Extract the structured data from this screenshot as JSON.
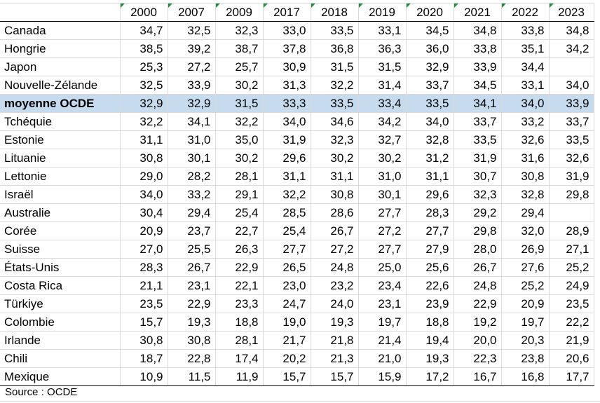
{
  "table": {
    "years": [
      "2000",
      "2007",
      "2009",
      "2017",
      "2018",
      "2019",
      "2020",
      "2021",
      "2022",
      "2023"
    ],
    "rows": [
      {
        "name": "Canada",
        "values": [
          "34,7",
          "32,5",
          "32,3",
          "33,0",
          "33,5",
          "33,1",
          "34,5",
          "34,8",
          "33,8",
          "34,8"
        ]
      },
      {
        "name": "Hongrie",
        "values": [
          "38,5",
          "39,2",
          "38,7",
          "37,8",
          "36,8",
          "36,3",
          "36,0",
          "33,8",
          "35,1",
          "34,2"
        ]
      },
      {
        "name": "Japon",
        "values": [
          "25,3",
          "27,2",
          "25,7",
          "30,9",
          "31,5",
          "31,5",
          "32,9",
          "33,9",
          "34,4",
          ""
        ]
      },
      {
        "name": "Nouvelle-Zélande",
        "values": [
          "32,5",
          "33,9",
          "30,2",
          "31,3",
          "32,2",
          "31,4",
          "33,7",
          "34,5",
          "33,1",
          "34,0"
        ]
      },
      {
        "name": "moyenne OCDE",
        "values": [
          "32,9",
          "32,9",
          "31,5",
          "33,3",
          "33,5",
          "33,4",
          "33,5",
          "34,1",
          "34,0",
          "33,9"
        ],
        "highlight": true
      },
      {
        "name": "Tchéquie",
        "values": [
          "32,2",
          "34,1",
          "32,2",
          "34,0",
          "34,6",
          "34,2",
          "34,0",
          "33,7",
          "33,2",
          "33,7"
        ]
      },
      {
        "name": "Estonie",
        "values": [
          "31,1",
          "31,0",
          "35,0",
          "31,9",
          "32,3",
          "32,7",
          "32,8",
          "33,5",
          "32,6",
          "33,5"
        ]
      },
      {
        "name": "Lituanie",
        "values": [
          "30,8",
          "30,1",
          "30,2",
          "29,6",
          "30,2",
          "30,2",
          "31,2",
          "31,9",
          "31,6",
          "32,6"
        ]
      },
      {
        "name": "Lettonie",
        "values": [
          "29,0",
          "28,2",
          "28,1",
          "31,1",
          "31,1",
          "31,0",
          "31,1",
          "30,7",
          "30,8",
          "31,9"
        ]
      },
      {
        "name": "Israël",
        "values": [
          "34,0",
          "33,2",
          "29,1",
          "32,2",
          "30,8",
          "30,1",
          "29,6",
          "32,3",
          "32,8",
          "29,8"
        ]
      },
      {
        "name": "Australie",
        "values": [
          "30,4",
          "29,4",
          "25,4",
          "28,5",
          "28,6",
          "27,7",
          "28,3",
          "29,2",
          "29,4",
          ""
        ]
      },
      {
        "name": "Corée",
        "values": [
          "20,9",
          "23,7",
          "22,7",
          "25,4",
          "26,7",
          "27,2",
          "27,7",
          "29,8",
          "32,0",
          "28,9"
        ]
      },
      {
        "name": "Suisse",
        "values": [
          "27,0",
          "25,5",
          "26,3",
          "27,7",
          "27,2",
          "27,7",
          "27,9",
          "28,0",
          "26,9",
          "27,1"
        ]
      },
      {
        "name": "États-Unis",
        "values": [
          "28,3",
          "26,7",
          "22,9",
          "26,5",
          "24,8",
          "25,0",
          "25,6",
          "26,7",
          "27,6",
          "25,2"
        ]
      },
      {
        "name": "Costa Rica",
        "values": [
          "21,1",
          "23,1",
          "22,1",
          "23,0",
          "23,2",
          "23,4",
          "22,6",
          "24,8",
          "25,2",
          "24,9"
        ]
      },
      {
        "name": "Türkiye",
        "values": [
          "23,5",
          "22,9",
          "23,3",
          "24,7",
          "24,0",
          "23,1",
          "23,9",
          "22,9",
          "20,9",
          "23,5"
        ]
      },
      {
        "name": "Colombie",
        "values": [
          "15,7",
          "19,3",
          "18,8",
          "19,0",
          "19,3",
          "19,7",
          "18,8",
          "19,2",
          "19,7",
          "22,2"
        ]
      },
      {
        "name": "Irlande",
        "values": [
          "30,8",
          "30,8",
          "28,1",
          "21,7",
          "21,8",
          "21,4",
          "19,4",
          "20,0",
          "20,3",
          "21,9"
        ]
      },
      {
        "name": "Chili",
        "values": [
          "18,7",
          "22,8",
          "17,4",
          "20,2",
          "21,3",
          "21,0",
          "19,3",
          "22,3",
          "23,8",
          "20,6"
        ]
      },
      {
        "name": "Mexique",
        "values": [
          "10,9",
          "11,5",
          "11,9",
          "15,7",
          "15,7",
          "15,9",
          "17,2",
          "16,7",
          "16,8",
          "17,7"
        ]
      }
    ]
  },
  "source": "Source : OCDE",
  "colors": {
    "highlight_row": "#c6dbee",
    "flag": "#1e8c3a",
    "gridline": "#d9d9d9"
  }
}
